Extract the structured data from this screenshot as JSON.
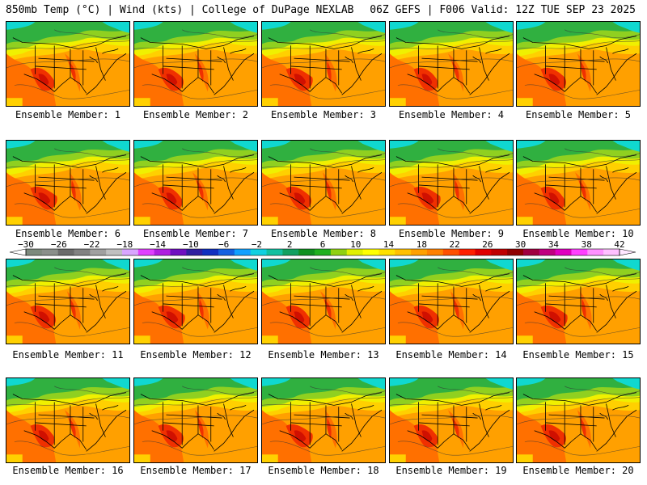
{
  "header": {
    "left": "850mb Temp (°C) | Wind (kts) | College of DuPage NEXLAB",
    "right": "06Z GEFS | F006 Valid: 12Z TUE SEP 23 2025"
  },
  "members": [
    "Ensemble Member: 1",
    "Ensemble Member: 2",
    "Ensemble Member: 3",
    "Ensemble Member: 4",
    "Ensemble Member: 5",
    "Ensemble Member: 6",
    "Ensemble Member: 7",
    "Ensemble Member: 8",
    "Ensemble Member: 9",
    "Ensemble Member: 10",
    "Ensemble Member: 11",
    "Ensemble Member: 12",
    "Ensemble Member: 13",
    "Ensemble Member: 14",
    "Ensemble Member: 15",
    "Ensemble Member: 16",
    "Ensemble Member: 17",
    "Ensemble Member: 18",
    "Ensemble Member: 19",
    "Ensemble Member: 20"
  ],
  "colorbar": {
    "labels": [
      "-30",
      "-26",
      "-22",
      "-18",
      "-14",
      "-10",
      "-6",
      "-2",
      "2",
      "6",
      "10",
      "14",
      "18",
      "22",
      "26",
      "30",
      "34",
      "38",
      "42"
    ],
    "colors": [
      "#7d8a7d",
      "#8a8f8a",
      "#6b6b6b",
      "#828282",
      "#a0a0a0",
      "#c0c0c0",
      "#d9a6ff",
      "#e040ff",
      "#b020e0",
      "#7010c0",
      "#3020a0",
      "#1030c0",
      "#1560e0",
      "#10a0ff",
      "#10d0e0",
      "#10c0a0",
      "#10a060",
      "#109020",
      "#20b020",
      "#90d010",
      "#e0f000",
      "#ffff00",
      "#ffe000",
      "#ffc000",
      "#ffa000",
      "#ff8000",
      "#ff5000",
      "#ff2000",
      "#e00000",
      "#c00000",
      "#900000",
      "#a00040",
      "#c00080",
      "#e000c0",
      "#ff40ff",
      "#ff90ff",
      "#ffc0ff"
    ]
  },
  "map_palette": {
    "cyan": "#10d8d0",
    "green": "#30b040",
    "light_green": "#90d020",
    "yellow": "#f0f000",
    "gold": "#ffd000",
    "orange": "#ffa000",
    "dark_orange": "#ff7000",
    "red": "#f03000",
    "dark_red": "#d01000"
  }
}
